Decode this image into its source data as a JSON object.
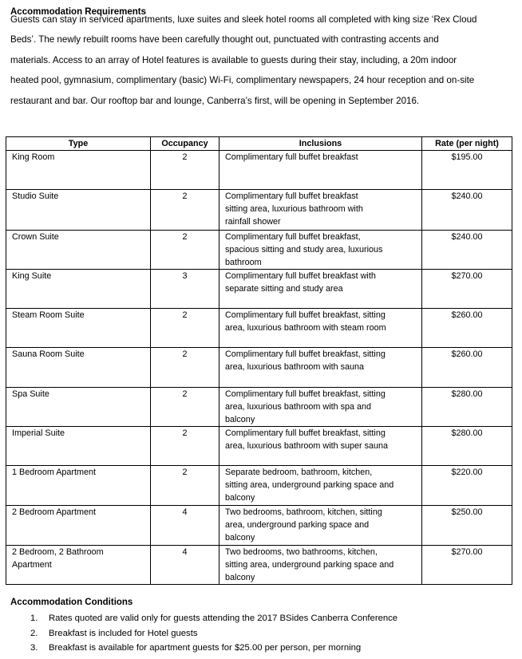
{
  "title": "Accommodation Requirements",
  "intro_lines": [
    "Guests can stay in serviced apartments, luxe suites and sleek hotel rooms all completed with king size ‘Rex Cloud",
    "Beds’. The newly rebuilt rooms have been carefully thought out, punctuated with contrasting accents and",
    "materials. Access to an array of Hotel features is available to guests during their stay, including, a 20m indoor",
    "heated pool, gymnasium, complimentary (basic) Wi-Fi, complimentary newspapers, 24 hour reception and on-site",
    "restaurant and bar. Our rooftop bar and lounge, Canberra’s first, will be opening in September 2016."
  ],
  "table": {
    "headers": [
      "Type",
      "Occupancy",
      "Inclusions",
      "Rate (per night)"
    ],
    "rows": [
      {
        "type": [
          "King Room"
        ],
        "occupancy": "2",
        "inclusions": [
          "Complimentary full buffet breakfast"
        ],
        "rate": "$195.00"
      },
      {
        "type": [
          "Studio Suite"
        ],
        "occupancy": "2",
        "inclusions": [
          "Complimentary full buffet breakfast",
          "sitting area, luxurious bathroom with",
          "rainfall shower"
        ],
        "rate": "$240.00"
      },
      {
        "type": [
          "Crown Suite"
        ],
        "occupancy": "2",
        "inclusions": [
          "Complimentary full buffet breakfast,",
          "spacious sitting and study area, luxurious",
          "bathroom"
        ],
        "rate": "$240.00"
      },
      {
        "type": [
          "King Suite"
        ],
        "occupancy": "3",
        "inclusions": [
          "Complimentary full buffet breakfast with",
          "separate sitting and study area"
        ],
        "rate": "$270.00"
      },
      {
        "type": [
          "Steam Room Suite"
        ],
        "occupancy": "2",
        "inclusions": [
          "Complimentary full buffet breakfast, sitting",
          "area, luxurious bathroom with steam room"
        ],
        "rate": "$260.00"
      },
      {
        "type": [
          "Sauna Room Suite"
        ],
        "occupancy": "2",
        "inclusions": [
          "Complimentary full buffet breakfast, sitting",
          "area, luxurious bathroom with sauna"
        ],
        "rate": "$260.00"
      },
      {
        "type": [
          "Spa Suite"
        ],
        "occupancy": "2",
        "inclusions": [
          "Complimentary full buffet breakfast, sitting",
          "area, luxurious bathroom with spa and",
          "balcony"
        ],
        "rate": "$280.00"
      },
      {
        "type": [
          "Imperial Suite"
        ],
        "occupancy": "2",
        "inclusions": [
          "Complimentary full buffet breakfast, sitting",
          "area, luxurious bathroom with super sauna"
        ],
        "rate": "$280.00"
      },
      {
        "type": [
          "1 Bedroom Apartment"
        ],
        "occupancy": "2",
        "inclusions": [
          "Separate bedroom, bathroom, kitchen,",
          "sitting area, underground parking space and",
          "balcony"
        ],
        "rate": "$220.00"
      },
      {
        "type": [
          "2 Bedroom Apartment"
        ],
        "occupancy": "4",
        "inclusions": [
          "Two bedrooms, bathroom, kitchen, sitting",
          "area, underground parking space and",
          "balcony"
        ],
        "rate": "$250.00"
      },
      {
        "type": [
          "2 Bedroom, 2 Bathroom",
          "Apartment"
        ],
        "occupancy": "4",
        "inclusions": [
          "Two bedrooms, two bathrooms, kitchen,",
          "sitting area, underground parking space and",
          "balcony"
        ],
        "rate": "$270.00"
      }
    ]
  },
  "conditions": {
    "title": "Accommodation Conditions",
    "items": [
      {
        "num": "1.",
        "text": "Rates quoted are valid only for guests attending the 2017 BSides Canberra Conference"
      },
      {
        "num": "2.",
        "text": "Breakfast is included for Hotel guests"
      },
      {
        "num": "3.",
        "text": "Breakfast is available for apartment guests for $25.00 per person, per morning"
      }
    ]
  }
}
